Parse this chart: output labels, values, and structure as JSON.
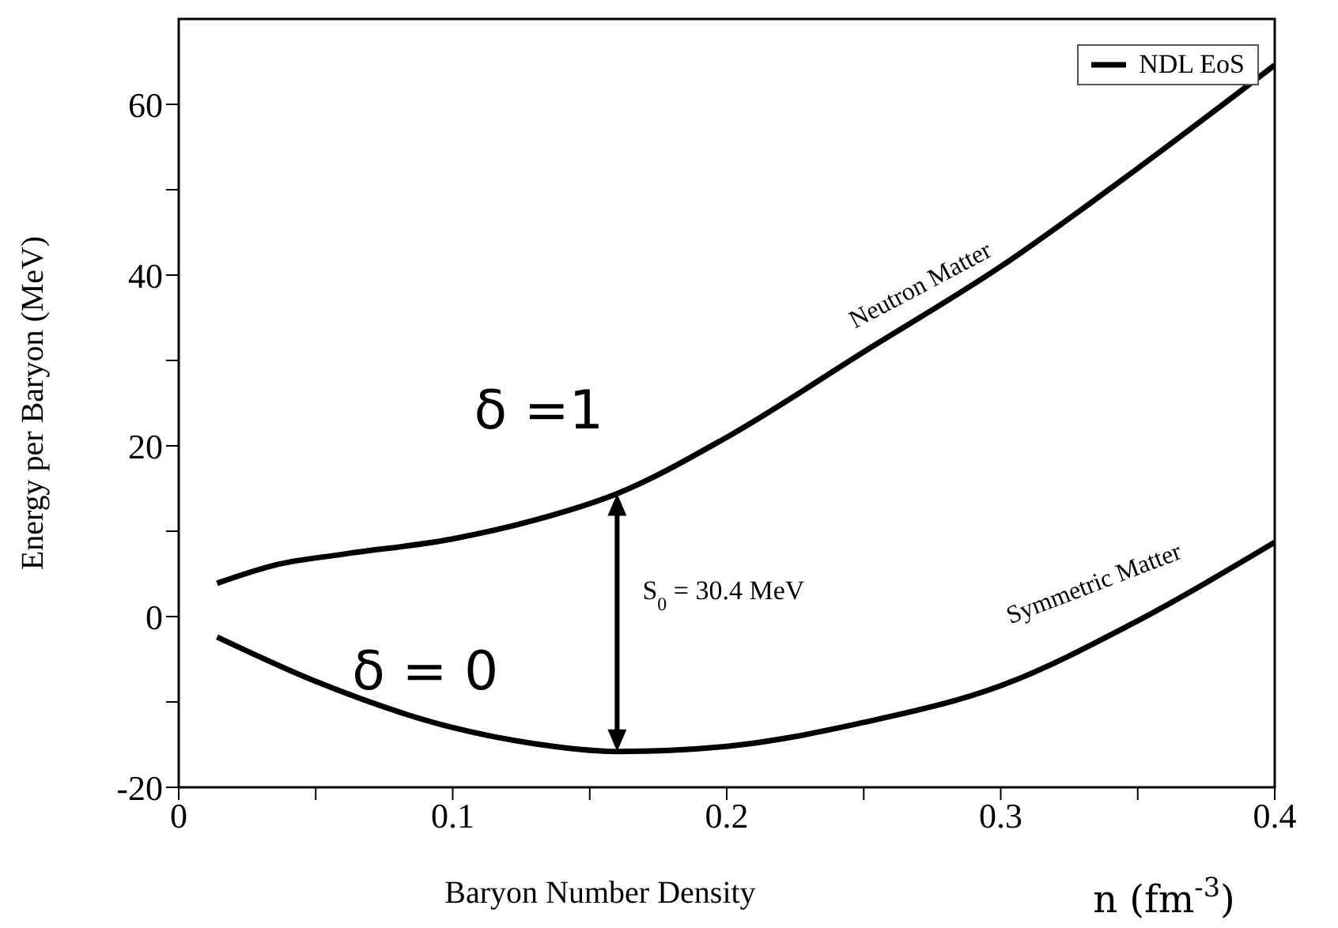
{
  "chart_data": {
    "type": "line",
    "xlabel": "Baryon Number Density",
    "ylabel": "Energy per Baryon  (MeV)",
    "xlim": [
      0,
      0.4
    ],
    "xticks": [
      0,
      {
        "value": 0.05,
        "label": null
      },
      0.1,
      {
        "value": 0.15,
        "label": null
      },
      0.2,
      {
        "value": 0.25,
        "label": null
      },
      0.3,
      {
        "value": 0.35,
        "label": null
      },
      0.4
    ],
    "ylim": [
      -20,
      70
    ],
    "yticks": [
      -20,
      {
        "value": -10,
        "label": null
      },
      0,
      {
        "value": 10,
        "label": null
      },
      20,
      {
        "value": 30,
        "label": null
      },
      40,
      {
        "value": 50,
        "label": null
      },
      60
    ],
    "grid": false,
    "legend": "top right",
    "marker": "none",
    "line_style": "solid",
    "series": [
      {
        "name": "NDL EoS",
        "color": "#000000",
        "x": [
          0.014,
          0.036,
          0.06,
          0.1,
          0.13,
          0.16,
          0.2,
          0.25,
          0.3,
          0.35,
          0.4
        ],
        "values": [
          3.9,
          6.1,
          7.3,
          9.1,
          11.3,
          14.4,
          21,
          31,
          41,
          52.5,
          64.6
        ]
      },
      {
        "color": "#000000",
        "x": [
          0.014,
          0.05,
          0.1,
          0.13,
          0.16,
          0.2,
          0.25,
          0.3,
          0.35,
          0.4
        ],
        "values": [
          -2.4,
          -7.6,
          -13,
          -14.9,
          -15.8,
          -15.2,
          -12.4,
          -8.1,
          -0.5,
          8.7
        ]
      }
    ],
    "annotations": [
      "δ =1",
      "δ = 0",
      "Neutron Matter",
      "Symmetric Matter",
      "S$_{0}$ = 30.4 MeV",
      "n (fm$^{-3}$)"
    ]
  }
}
